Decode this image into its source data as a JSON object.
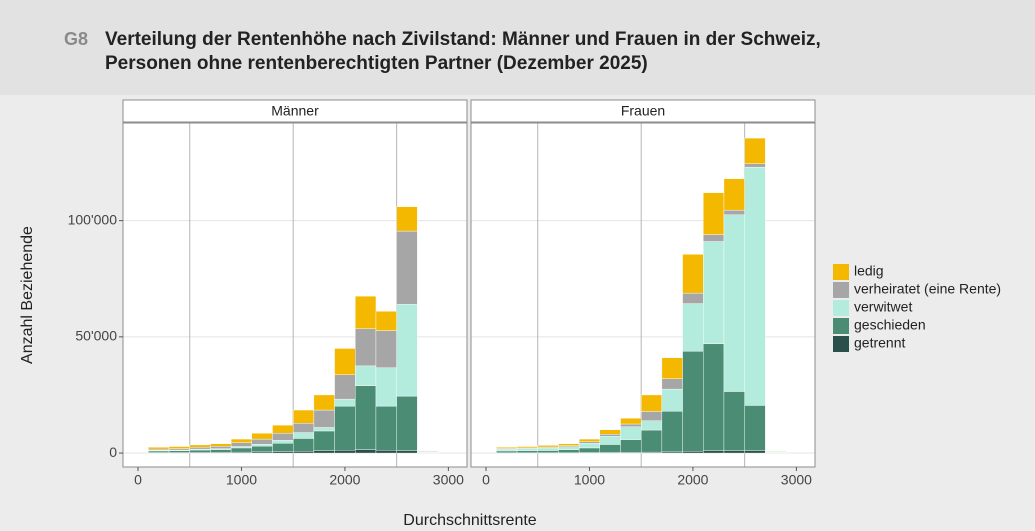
{
  "header": {
    "code": "G8",
    "title": [
      "Verteilung der Rentenhöhe nach Zivilstand: Männer und Frauen in der Schweiz,",
      "Personen ohne rentenberechtigten Partner (Dezember 2025)"
    ]
  },
  "chart_data": {
    "type": "histogram",
    "xlabel": "Durchschnittsrente",
    "ylabel": "Anzahl Beziehende",
    "bins": [
      100,
      300,
      500,
      700,
      900,
      1100,
      1300,
      1500,
      1700,
      1900,
      2100,
      2300,
      2500,
      2700,
      2900
    ],
    "xlim": [
      -145,
      3180
    ],
    "xticks": [
      0,
      1000,
      2000,
      3000
    ],
    "ylim": [
      -6000,
      142000
    ],
    "yticks": [
      0,
      {
        "value": 50000,
        "label": "50'000"
      },
      {
        "value": 100000,
        "label": "100'000"
      }
    ],
    "vlines": [
      500,
      1500,
      2500
    ],
    "grid": true,
    "legend": "right",
    "series": [
      {
        "name": "getrennt",
        "color": "#2b4f4a"
      },
      {
        "name": "geschieden",
        "color": "#4a8c74"
      },
      {
        "name": "verwitwet",
        "color": "#b3ecdc"
      },
      {
        "name": "verheiratet (eine Rente)",
        "color": "#a6a6a6"
      },
      {
        "name": "ledig",
        "color": "#f5b800"
      }
    ],
    "facets": [
      {
        "title": "Männer",
        "values": [
          [
            200,
            200,
            300,
            300,
            400,
            500,
            700,
            800,
            1000,
            1200,
            1500,
            1200,
            1000,
            100
          ],
          [
            700,
            800,
            1000,
            1200,
            1800,
            2500,
            3500,
            5500,
            8500,
            19000,
            27500,
            19000,
            23500,
            200
          ],
          [
            300,
            300,
            400,
            400,
            600,
            800,
            1300,
            2500,
            1500,
            3000,
            8500,
            16500,
            39500,
            300
          ],
          [
            500,
            600,
            800,
            1000,
            1700,
            2200,
            3000,
            4000,
            7500,
            10500,
            16000,
            16000,
            31500,
            300
          ],
          [
            800,
            900,
            1000,
            1100,
            1500,
            2500,
            3500,
            5700,
            6500,
            11300,
            14000,
            8300,
            10500,
            200
          ]
        ]
      },
      {
        "title": "Frauen",
        "values": [
          [
            100,
            100,
            100,
            100,
            200,
            200,
            300,
            400,
            500,
            800,
            1000,
            1000,
            1000,
            100
          ],
          [
            800,
            900,
            1000,
            1300,
            2000,
            3500,
            5500,
            9500,
            17500,
            43000,
            46000,
            25500,
            19500,
            200
          ],
          [
            800,
            900,
            1100,
            1300,
            2000,
            3500,
            5500,
            4000,
            9500,
            20500,
            44000,
            76000,
            102500,
            400
          ],
          [
            300,
            300,
            400,
            500,
            700,
            900,
            1200,
            4000,
            4500,
            4500,
            3000,
            2000,
            1500,
            100
          ],
          [
            500,
            600,
            700,
            800,
            1100,
            1900,
            2500,
            7100,
            9000,
            16700,
            18000,
            13500,
            11000,
            200
          ]
        ]
      }
    ]
  }
}
